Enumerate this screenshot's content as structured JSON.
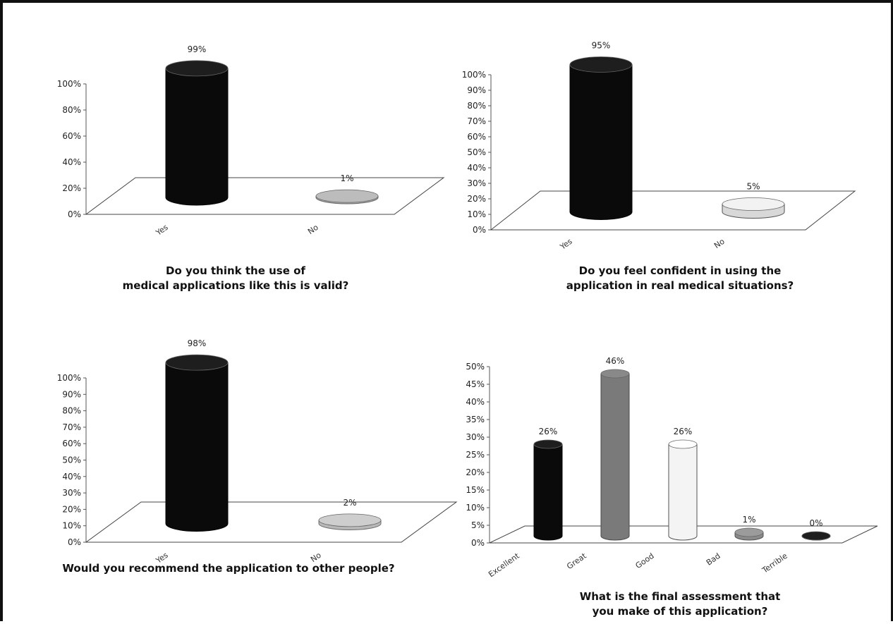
{
  "chart_data": [
    {
      "type": "bar",
      "categories": [
        "Yes",
        "No"
      ],
      "values": [
        99,
        1
      ],
      "data_labels": [
        "99%",
        "1%"
      ],
      "y_ticks": [
        "0%",
        "20%",
        "40%",
        "60%",
        "80%",
        "100%"
      ],
      "ylim": [
        0,
        100
      ],
      "caption": [
        "Do you think the use of",
        "medical applications like this is valid?"
      ],
      "colors": [
        "#0a0a0a",
        "#a8a8a8"
      ]
    },
    {
      "type": "bar",
      "categories": [
        "Yes",
        "No"
      ],
      "values": [
        95,
        5
      ],
      "data_labels": [
        "95%",
        "5%"
      ],
      "y_ticks": [
        "0%",
        "10%",
        "20%",
        "30%",
        "40%",
        "50%",
        "60%",
        "70%",
        "80%",
        "90%",
        "100%"
      ],
      "ylim": [
        0,
        100
      ],
      "caption": [
        "Do you feel confident in using the",
        "application in real medical situations?"
      ],
      "colors": [
        "#0a0a0a",
        "#d8d8d8"
      ]
    },
    {
      "type": "bar",
      "categories": [
        "Yes",
        "No"
      ],
      "values": [
        98,
        2
      ],
      "data_labels": [
        "98%",
        "2%"
      ],
      "y_ticks": [
        "0%",
        "10%",
        "20%",
        "30%",
        "40%",
        "50%",
        "60%",
        "70%",
        "80%",
        "90%",
        "100%"
      ],
      "ylim": [
        0,
        100
      ],
      "caption": [
        "Would you recommend the application to other people?"
      ],
      "colors": [
        "#0a0a0a",
        "#b8b8b8"
      ]
    },
    {
      "type": "bar",
      "categories": [
        "Excellent",
        "Great",
        "Good",
        "Bad",
        "Terrible"
      ],
      "values": [
        26,
        46,
        26,
        1,
        0
      ],
      "data_labels": [
        "26%",
        "46%",
        "26%",
        "1%",
        "0%"
      ],
      "y_ticks": [
        "0%",
        "5%",
        "10%",
        "15%",
        "20%",
        "25%",
        "30%",
        "35%",
        "40%",
        "45%",
        "50%"
      ],
      "ylim": [
        0,
        50
      ],
      "caption": [
        "What is the final assessment that",
        "you make of this application?"
      ],
      "colors": [
        "#0a0a0a",
        "#7a7a7a",
        "#f4f4f4",
        "#8a8a8a",
        "#0a0a0a"
      ]
    }
  ]
}
